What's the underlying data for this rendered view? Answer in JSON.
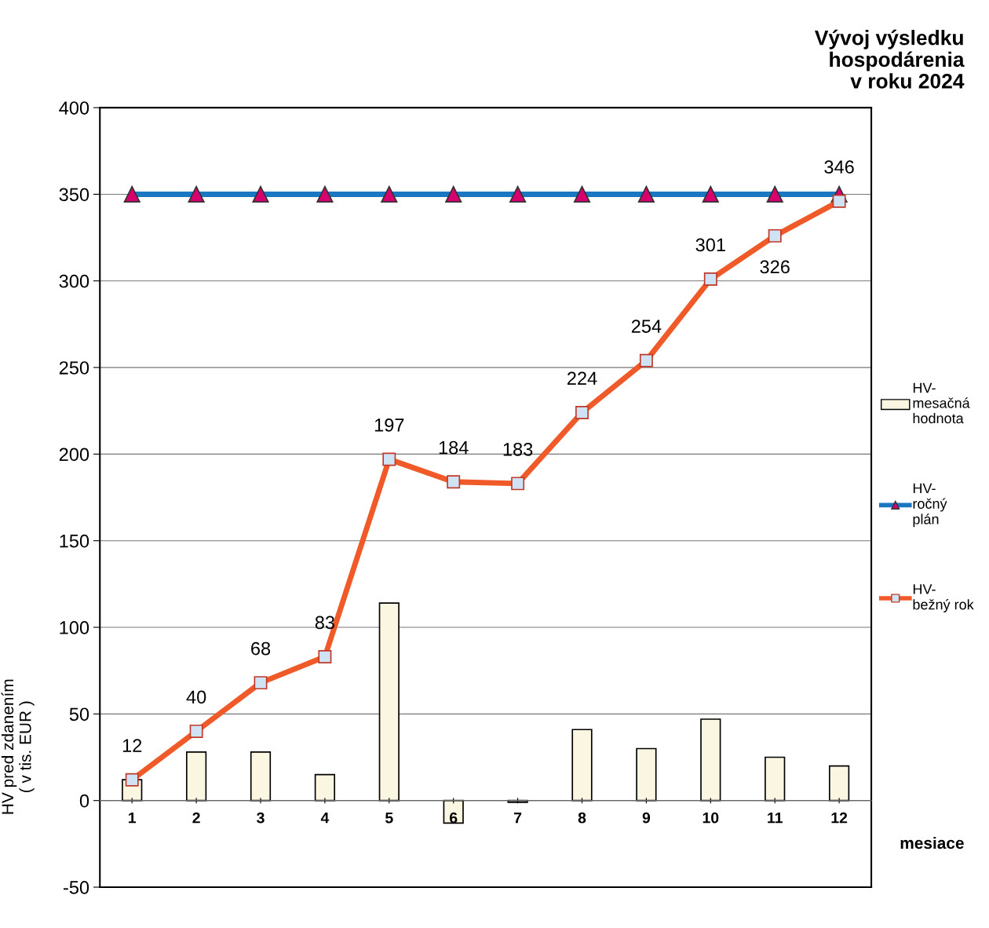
{
  "chart_data": {
    "type": "bar",
    "title": "Vývoj výsledku\nhospodárenia\nv roku 2024",
    "xlabel": "mesiace",
    "ylabel": "HV pred zdanením\n( v tis. EUR )",
    "categories": [
      "1",
      "2",
      "3",
      "4",
      "5",
      "6",
      "7",
      "8",
      "9",
      "10",
      "11",
      "12"
    ],
    "series": [
      {
        "name": "HV-\nmesačná\nhodnota",
        "color": "#fbf6e2",
        "values": [
          12,
          28,
          28,
          15,
          114,
          -13,
          -1,
          41,
          30,
          47,
          25,
          20
        ]
      },
      {
        "name": "HV-\nročný\nplán",
        "type": "line",
        "color": "#1a78c2",
        "marker": "triangle",
        "values": [
          350,
          350,
          350,
          350,
          350,
          350,
          350,
          350,
          350,
          350,
          350,
          350
        ]
      },
      {
        "name": "HV-\nbežný rok",
        "type": "line",
        "color": "#f05a28",
        "marker": "square",
        "values": [
          12,
          40,
          68,
          83,
          197,
          184,
          183,
          224,
          254,
          301,
          326,
          346
        ],
        "value_labels": [
          "12",
          "40",
          "68",
          "83",
          "197",
          "184",
          "183",
          "224",
          "254",
          "301",
          "326",
          "346"
        ]
      }
    ],
    "ylim": [
      -50,
      400
    ],
    "yticks": [
      -50,
      0,
      50,
      100,
      150,
      200,
      250,
      300,
      350,
      400
    ],
    "grid": "y",
    "legend": "right"
  }
}
